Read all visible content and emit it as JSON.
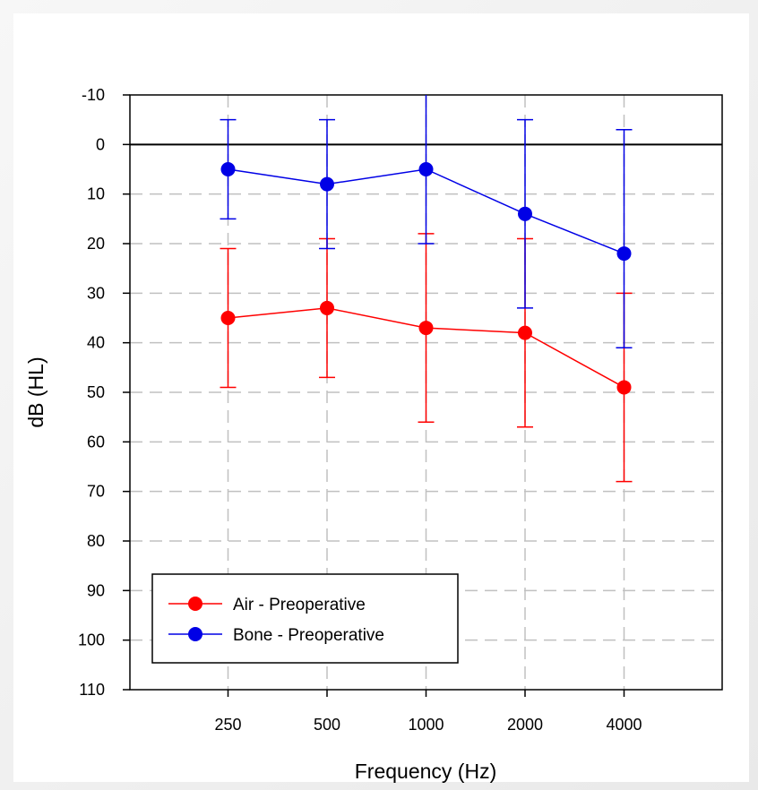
{
  "chart_data": {
    "type": "line",
    "title": "",
    "xlabel": "Frequency (Hz)",
    "ylabel": "dB (HL)",
    "categories": [
      "250",
      "500",
      "1000",
      "2000",
      "4000"
    ],
    "yticks": [
      "-10",
      "0",
      "10",
      "20",
      "30",
      "40",
      "50",
      "60",
      "70",
      "80",
      "90",
      "100",
      "110"
    ],
    "ylim": [
      -10,
      110
    ],
    "y_inverted": true,
    "grid": true,
    "reference_line_y": 0,
    "legend_position": "bottom-left",
    "series": [
      {
        "name": "Air - Preoperative",
        "color": "#ff0000",
        "values": [
          35,
          33,
          37,
          38,
          49
        ],
        "err_low": [
          21,
          19,
          18,
          19,
          30
        ],
        "err_high": [
          49,
          47,
          56,
          57,
          68
        ]
      },
      {
        "name": "Bone - Preoperative",
        "color": "#0000e6",
        "values": [
          5,
          8,
          5,
          14,
          22
        ],
        "err_low": [
          -5,
          -5,
          -10,
          -5,
          -3
        ],
        "err_high": [
          15,
          21,
          20,
          33,
          41
        ]
      }
    ]
  }
}
